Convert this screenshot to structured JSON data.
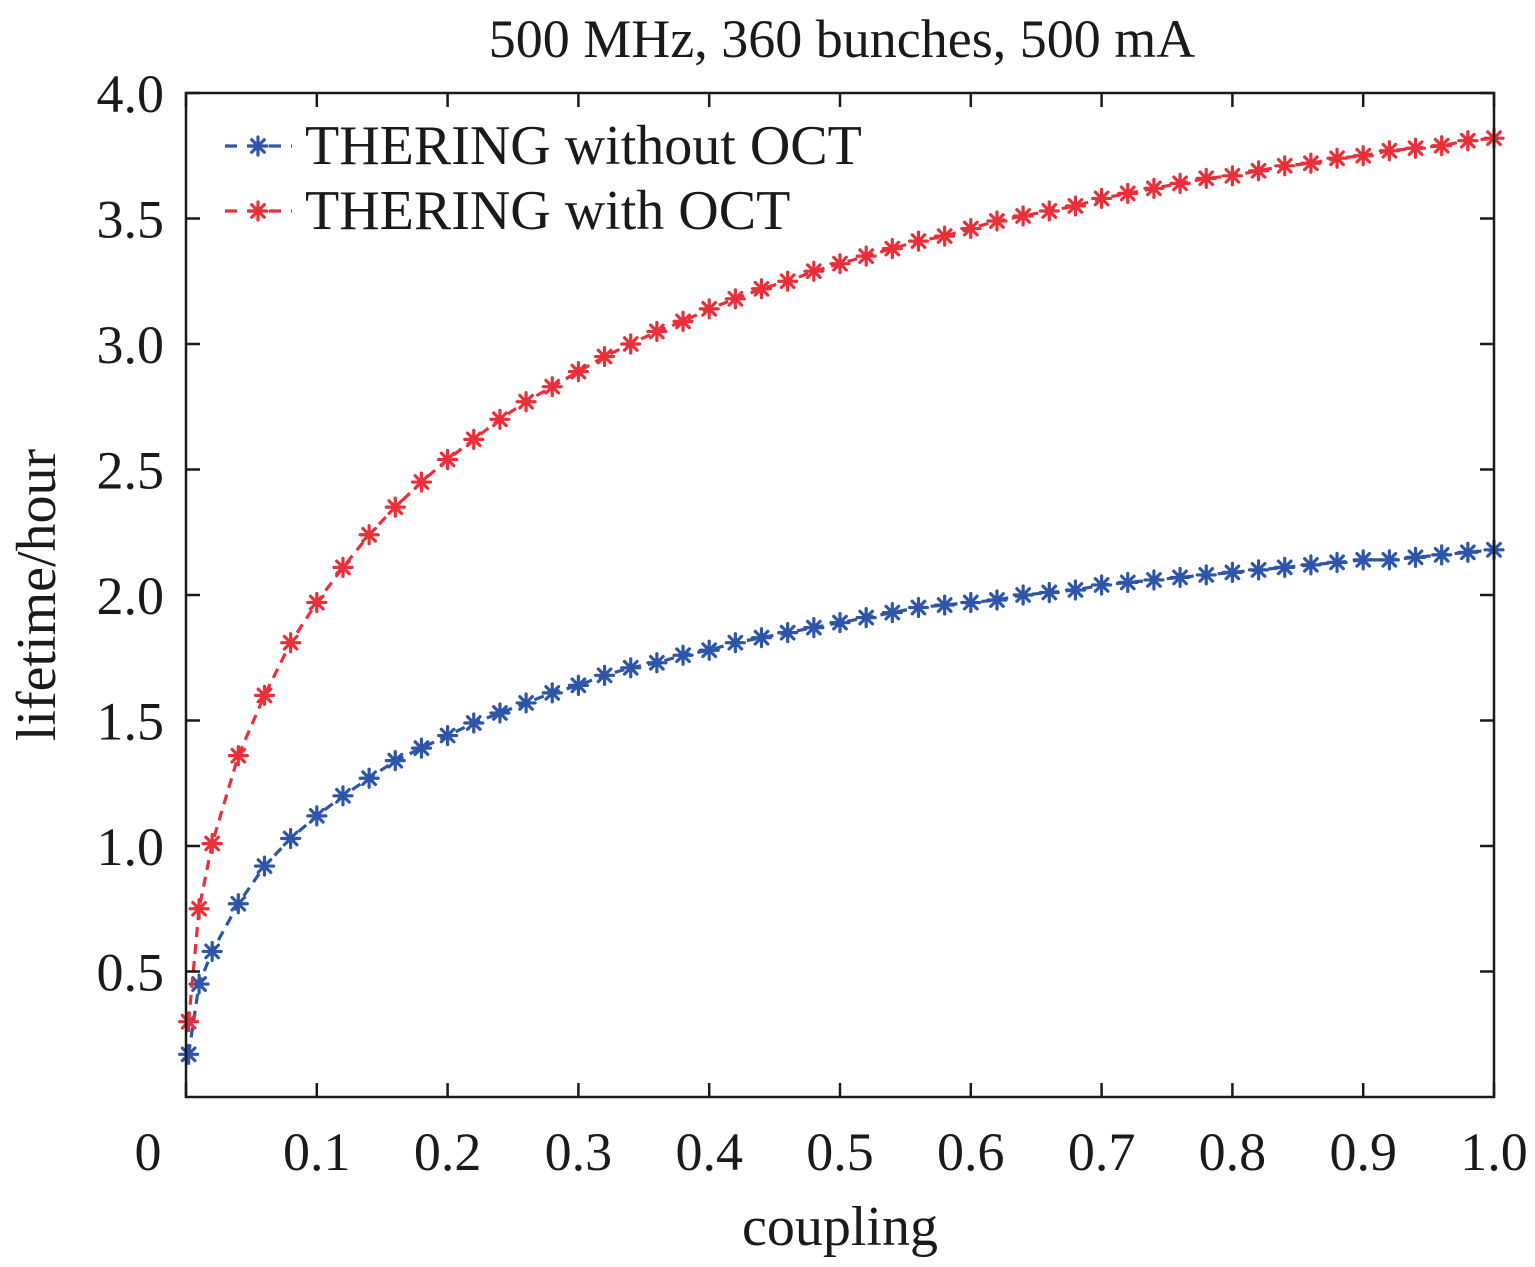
{
  "chart_data": {
    "type": "line",
    "title": "500 MHz, 360 bunches, 500 mA",
    "xlabel": "coupling",
    "ylabel": "lifetime/hour",
    "xlim": [
      0,
      1.0
    ],
    "ylim": [
      0,
      4.0
    ],
    "x_ticks": [
      "0",
      "0.1",
      "0.2",
      "0.3",
      "0.4",
      "0.5",
      "0.6",
      "0.7",
      "0.8",
      "0.9",
      "1.0"
    ],
    "y_ticks": [
      "0.5",
      "1.0",
      "1.5",
      "2.0",
      "2.5",
      "3.0",
      "3.5",
      "4.0"
    ],
    "grid": false,
    "legend_position": "top-left",
    "series": [
      {
        "name": "THERING without OCT",
        "color": "#2e55a8",
        "marker": "asterisk",
        "line_style": "dashed",
        "x": [
          0.002,
          0.01,
          0.02,
          0.04,
          0.06,
          0.08,
          0.1,
          0.12,
          0.14,
          0.16,
          0.18,
          0.2,
          0.22,
          0.24,
          0.26,
          0.28,
          0.3,
          0.32,
          0.34,
          0.36,
          0.38,
          0.4,
          0.42,
          0.44,
          0.46,
          0.48,
          0.5,
          0.52,
          0.54,
          0.56,
          0.58,
          0.6,
          0.62,
          0.64,
          0.66,
          0.68,
          0.7,
          0.72,
          0.74,
          0.76,
          0.78,
          0.8,
          0.82,
          0.84,
          0.86,
          0.88,
          0.9,
          0.92,
          0.94,
          0.96,
          0.98,
          1.0
        ],
        "y": [
          0.17,
          0.45,
          0.58,
          0.77,
          0.92,
          1.03,
          1.12,
          1.2,
          1.27,
          1.34,
          1.39,
          1.44,
          1.49,
          1.53,
          1.57,
          1.61,
          1.64,
          1.68,
          1.71,
          1.73,
          1.76,
          1.78,
          1.81,
          1.83,
          1.85,
          1.87,
          1.89,
          1.91,
          1.93,
          1.95,
          1.96,
          1.97,
          1.98,
          2.0,
          2.01,
          2.02,
          2.04,
          2.05,
          2.06,
          2.07,
          2.08,
          2.09,
          2.1,
          2.11,
          2.12,
          2.13,
          2.14,
          2.14,
          2.15,
          2.16,
          2.17,
          2.18
        ]
      },
      {
        "name": "THERING with OCT",
        "color": "#e8303a",
        "marker": "asterisk",
        "line_style": "dashed",
        "x": [
          0.002,
          0.01,
          0.02,
          0.04,
          0.06,
          0.08,
          0.1,
          0.12,
          0.14,
          0.16,
          0.18,
          0.2,
          0.22,
          0.24,
          0.26,
          0.28,
          0.3,
          0.32,
          0.34,
          0.36,
          0.38,
          0.4,
          0.42,
          0.44,
          0.46,
          0.48,
          0.5,
          0.52,
          0.54,
          0.56,
          0.58,
          0.6,
          0.62,
          0.64,
          0.66,
          0.68,
          0.7,
          0.72,
          0.74,
          0.76,
          0.78,
          0.8,
          0.82,
          0.84,
          0.86,
          0.88,
          0.9,
          0.92,
          0.94,
          0.96,
          0.98,
          1.0
        ],
        "y": [
          0.3,
          0.75,
          1.01,
          1.36,
          1.6,
          1.81,
          1.97,
          2.11,
          2.24,
          2.35,
          2.45,
          2.54,
          2.62,
          2.7,
          2.77,
          2.83,
          2.89,
          2.95,
          3.0,
          3.05,
          3.09,
          3.14,
          3.18,
          3.22,
          3.25,
          3.29,
          3.32,
          3.35,
          3.38,
          3.41,
          3.43,
          3.46,
          3.49,
          3.51,
          3.53,
          3.55,
          3.58,
          3.6,
          3.62,
          3.64,
          3.66,
          3.67,
          3.69,
          3.71,
          3.72,
          3.74,
          3.75,
          3.77,
          3.78,
          3.79,
          3.81,
          3.82
        ]
      }
    ]
  }
}
